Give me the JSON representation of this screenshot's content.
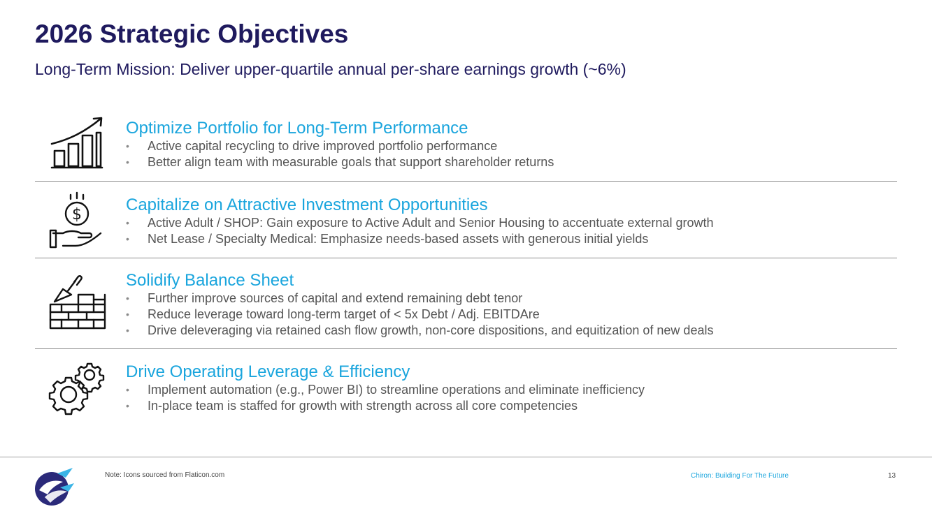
{
  "slide": {
    "title": "2026 Strategic Objectives",
    "subtitle": "Long-Term Mission: Deliver upper-quartile annual per-share earnings growth (~6%)"
  },
  "sections": [
    {
      "icon": "growth-chart-icon",
      "heading": "Optimize Portfolio for Long-Term Performance",
      "bullets": [
        "Active capital recycling to drive improved portfolio performance",
        "Better align team with measurable goals that support shareholder returns"
      ]
    },
    {
      "icon": "money-hand-icon",
      "heading": "Capitalize on Attractive Investment Opportunities",
      "bullets": [
        "Active Adult / SHOP: Gain exposure to Active Adult and Senior Housing to accentuate external growth",
        "Net Lease / Specialty Medical: Emphasize needs-based assets with generous initial yields"
      ]
    },
    {
      "icon": "brick-wall-trowel-icon",
      "heading": "Solidify Balance Sheet",
      "bullets": [
        "Further improve sources of capital and extend remaining debt tenor",
        "Reduce leverage toward long-term target of < 5x Debt / Adj. EBITDAre",
        "Drive deleveraging via retained cash flow growth, non-core dispositions, and equitization of new deals"
      ]
    },
    {
      "icon": "gears-icon",
      "heading": "Drive Operating Leverage & Efficiency",
      "bullets": [
        "Implement automation (e.g., Power BI) to streamline operations and eliminate inefficiency",
        "In-place team is staffed for growth with strength across all core competencies"
      ]
    }
  ],
  "bullet_glyph": "•",
  "footer": {
    "logo_icon": "chiron-logo-icon",
    "note": "Note: Icons sourced from Flaticon.com",
    "tagline": "Chiron: Building For The Future",
    "page_number": "13"
  },
  "colors": {
    "title": "#1f1a5e",
    "heading": "#1aa5dd",
    "body_text": "#555555",
    "divider": "#8c8c8c"
  }
}
